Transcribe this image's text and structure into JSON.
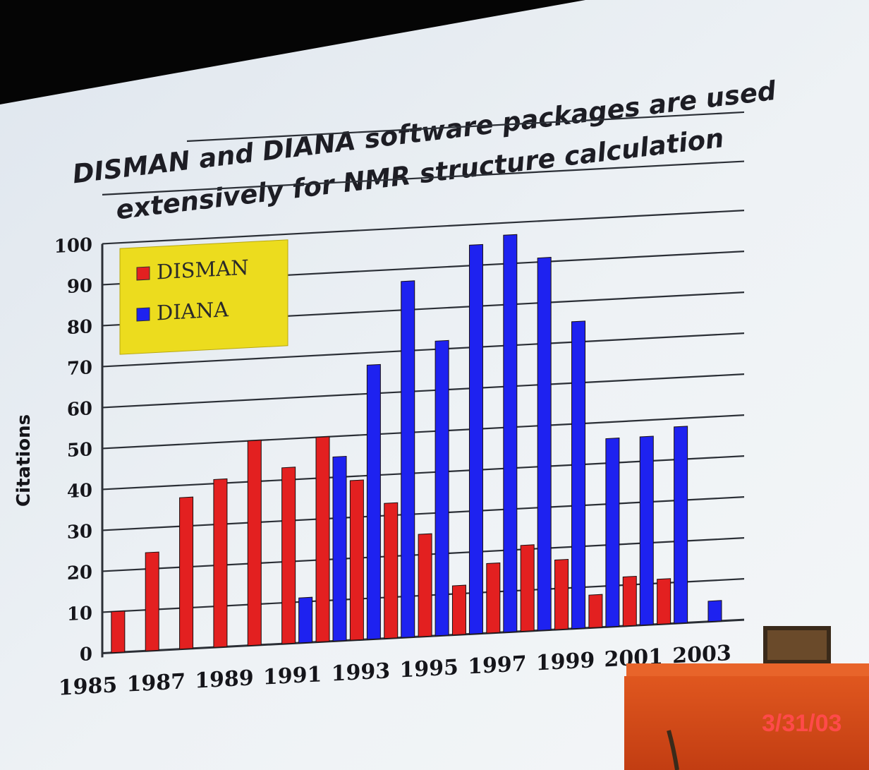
{
  "slide": {
    "title_line1": "DISMAN and DIANA software packages are used",
    "title_line2": "extensively for NMR structure calculation",
    "date_stamp": "3/31/03"
  },
  "colors": {
    "DISMAN": "#e32020",
    "DIANA": "#1e22f0",
    "legend_bg": "#ecdc1e",
    "background": "#e9eef2"
  },
  "chart_data": {
    "type": "bar",
    "ylabel": "Citations",
    "ylim": [
      0,
      100
    ],
    "yticks": [
      0,
      10,
      20,
      30,
      40,
      50,
      60,
      70,
      80,
      90,
      100
    ],
    "grid": true,
    "legend_placement": "top-left",
    "categories": [
      1986,
      1987,
      1988,
      1989,
      1990,
      1991,
      1992,
      1993,
      1994,
      1995,
      1996,
      1997,
      1998,
      1999,
      2000,
      2001,
      2002,
      2003
    ],
    "x_tick_labels": [
      {
        "year": 1985,
        "label": "1985"
      },
      {
        "year": 1987,
        "label": "1987"
      },
      {
        "year": 1989,
        "label": "1989"
      },
      {
        "year": 1991,
        "label": "1991"
      },
      {
        "year": 1993,
        "label": "1993"
      },
      {
        "year": 1995,
        "label": "1995"
      },
      {
        "year": 1997,
        "label": "1997"
      },
      {
        "year": 1999,
        "label": "1999"
      },
      {
        "year": 2001,
        "label": "2001"
      },
      {
        "year": 2003,
        "label": "2003"
      }
    ],
    "series": [
      {
        "name": "DISMAN",
        "values": [
          10,
          24,
          37,
          41,
          50,
          43,
          50,
          39,
          33,
          25,
          12,
          17,
          21,
          17,
          8,
          12,
          11,
          null
        ]
      },
      {
        "name": "DIANA",
        "values": [
          null,
          null,
          null,
          null,
          null,
          11,
          45,
          67,
          87,
          72,
          95,
          97,
          91,
          75,
          46,
          46,
          48,
          5
        ]
      }
    ]
  }
}
